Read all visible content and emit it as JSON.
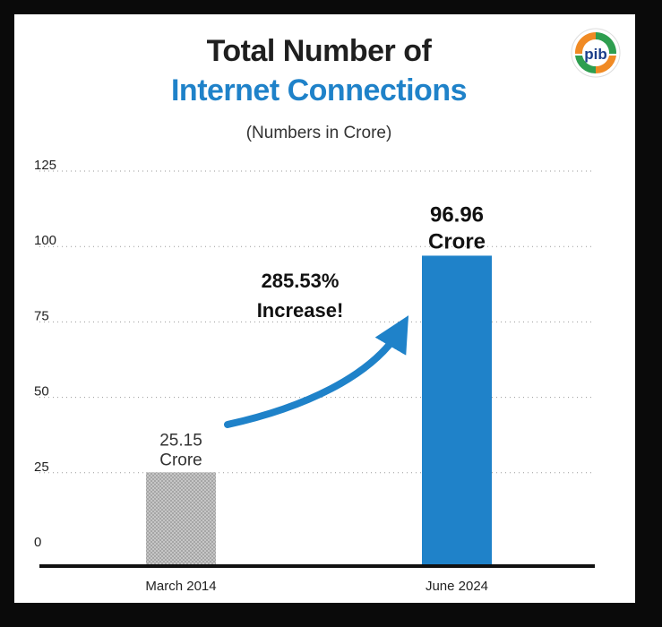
{
  "title_line1": "Total Number of",
  "title_line2": "Internet Connections",
  "subtitle": "(Numbers in Crore)",
  "logo_text": "pib",
  "colors": {
    "title_accent": "#1f82c9",
    "bar_march_2014": "#b9b9b9",
    "bar_june_2024": "#1f82c9",
    "arrow": "#1f82c9"
  },
  "chart_data": {
    "type": "bar",
    "categories": [
      "March 2014",
      "June 2024"
    ],
    "values": [
      25.15,
      96.96
    ],
    "data_labels": [
      [
        "25.15",
        "Crore"
      ],
      [
        "96.96",
        "Crore"
      ]
    ],
    "annotation": [
      "285.53%",
      "Increase!"
    ],
    "ylim": [
      0,
      125
    ],
    "yticks": [
      0,
      25,
      50,
      75,
      100,
      125
    ],
    "grid": true,
    "legend": "none"
  }
}
